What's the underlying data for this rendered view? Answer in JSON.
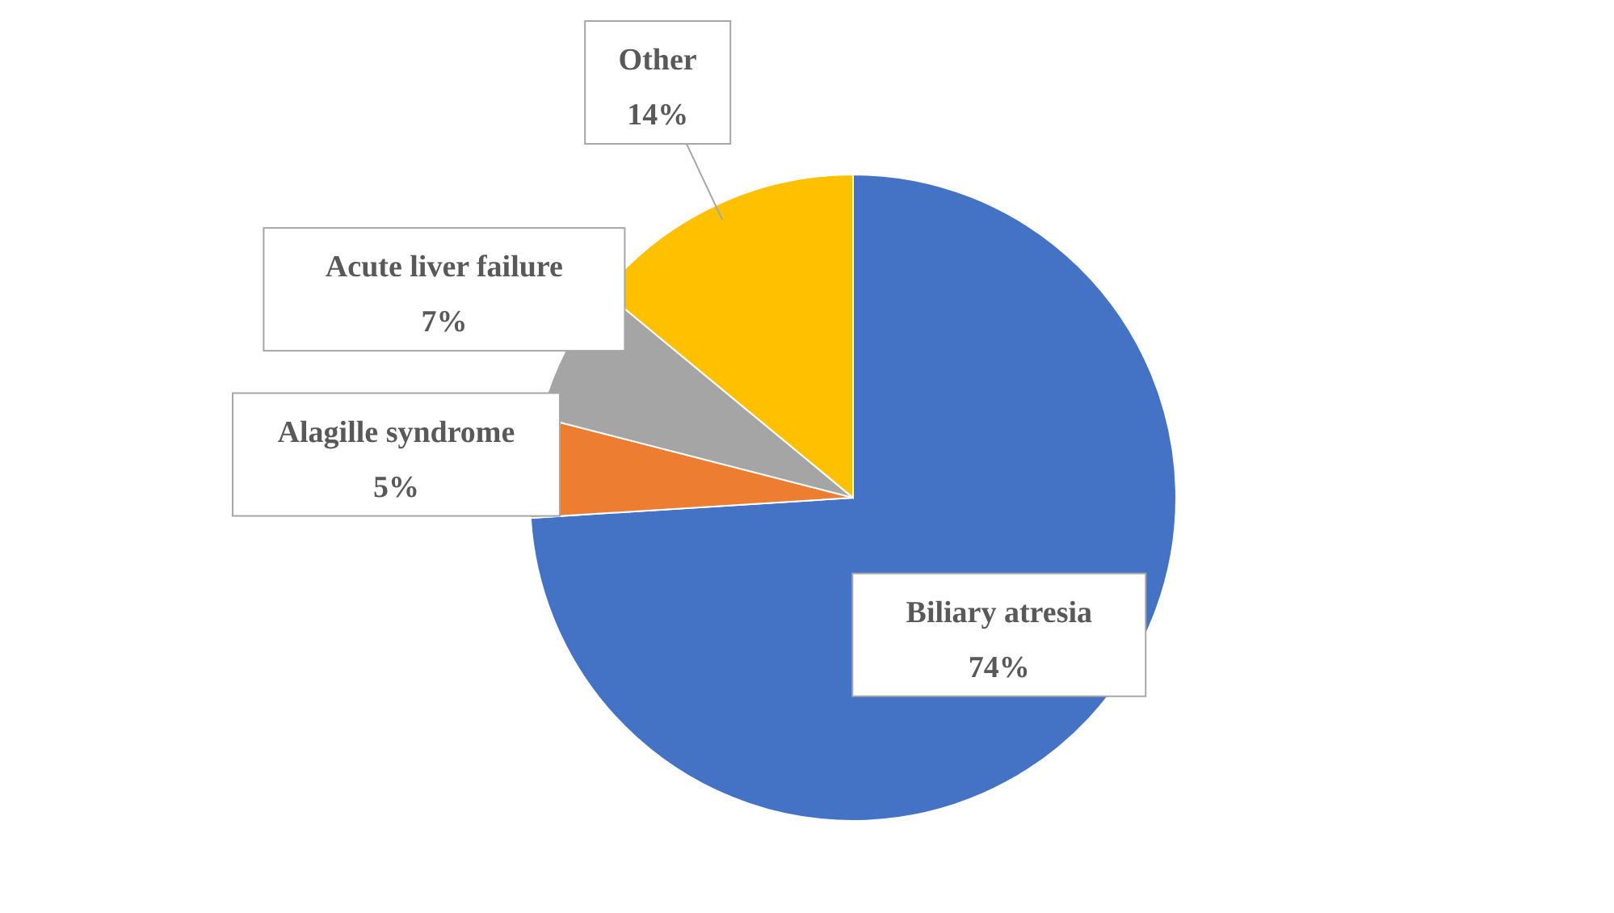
{
  "chart_data": {
    "type": "pie",
    "categories": [
      "Biliary atresia",
      "Alagille syndrome",
      "Acute liver failure",
      "Other"
    ],
    "values": [
      74,
      5,
      7,
      14
    ],
    "colors": [
      "#4472c4",
      "#ed7d31",
      "#a5a5a5",
      "#ffc000"
    ],
    "value_labels": [
      "74%",
      "5%",
      "7%",
      "14%"
    ]
  }
}
